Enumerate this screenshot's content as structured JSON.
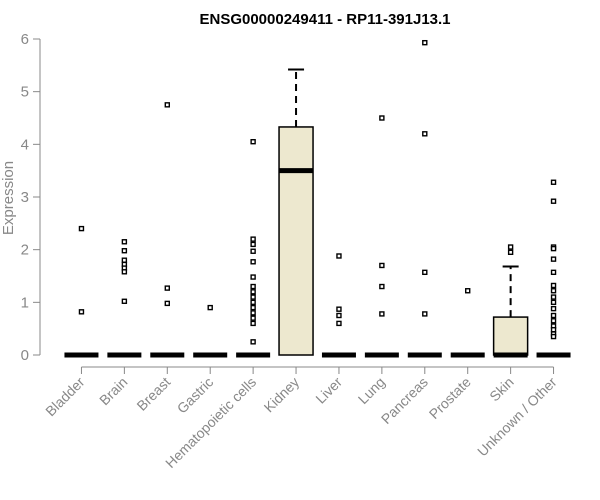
{
  "chart_data": {
    "type": "box",
    "title": "ENSG00000249411 - RP11-391J13.1",
    "xlabel": "",
    "ylabel": "Expression",
    "ylim": [
      0,
      6
    ],
    "yticks": [
      "0",
      "1",
      "2",
      "3",
      "4",
      "5",
      "6"
    ],
    "grid": false,
    "box_fill": "#EDE8CF",
    "categories": [
      "Bladder",
      "Brain",
      "Breast",
      "Gastric",
      "Hematopoietic cells",
      "Kidney",
      "Liver",
      "Lung",
      "Pancreas",
      "Prostate",
      "Skin",
      "Unknown / Other"
    ],
    "boxes": [
      {
        "q1": 0,
        "median": 0,
        "q3": 0,
        "whisker_low": 0,
        "whisker_high": 0,
        "outliers": [
          2.4,
          0.82
        ]
      },
      {
        "q1": 0,
        "median": 0,
        "q3": 0,
        "whisker_low": 0,
        "whisker_high": 0,
        "outliers": [
          2.15,
          1.98,
          1.8,
          1.72,
          1.65,
          1.58,
          1.02
        ]
      },
      {
        "q1": 0,
        "median": 0,
        "q3": 0,
        "whisker_low": 0,
        "whisker_high": 0,
        "outliers": [
          4.75,
          1.27,
          0.98
        ]
      },
      {
        "q1": 0,
        "median": 0,
        "q3": 0,
        "whisker_low": 0,
        "whisker_high": 0,
        "outliers": [
          0.9
        ]
      },
      {
        "q1": 0,
        "median": 0,
        "q3": 0,
        "whisker_low": 0,
        "whisker_high": 0,
        "outliers": [
          4.05,
          2.2,
          2.1,
          1.97,
          1.77,
          1.48,
          1.3,
          1.2,
          1.1,
          1.0,
          0.9,
          0.8,
          0.7,
          0.6,
          0.25
        ]
      },
      {
        "q1": 0,
        "median": 3.5,
        "q3": 4.33,
        "whisker_low": 0,
        "whisker_high": 5.42,
        "outliers": []
      },
      {
        "q1": 0,
        "median": 0,
        "q3": 0,
        "whisker_low": 0,
        "whisker_high": 0,
        "outliers": [
          1.88,
          0.87,
          0.75,
          0.6
        ]
      },
      {
        "q1": 0,
        "median": 0,
        "q3": 0,
        "whisker_low": 0,
        "whisker_high": 0,
        "outliers": [
          4.5,
          1.7,
          1.3,
          0.78
        ]
      },
      {
        "q1": 0,
        "median": 0,
        "q3": 0,
        "whisker_low": 0,
        "whisker_high": 0,
        "outliers": [
          5.93,
          4.2,
          1.57,
          0.78
        ]
      },
      {
        "q1": 0,
        "median": 0,
        "q3": 0,
        "whisker_low": 0,
        "whisker_high": 0,
        "outliers": [
          1.22
        ]
      },
      {
        "q1": 0,
        "median": 0,
        "q3": 0.72,
        "whisker_low": 0,
        "whisker_high": 1.68,
        "outliers": [
          2.05,
          1.95
        ]
      },
      {
        "q1": 0,
        "median": 0,
        "q3": 0,
        "whisker_low": 0,
        "whisker_high": 0,
        "outliers": [
          3.28,
          2.92,
          2.05,
          2.02,
          1.82,
          1.57,
          1.32,
          1.22,
          1.1,
          1.0,
          0.88,
          0.75,
          0.65,
          0.55,
          0.48,
          0.4,
          0.35
        ]
      }
    ]
  }
}
